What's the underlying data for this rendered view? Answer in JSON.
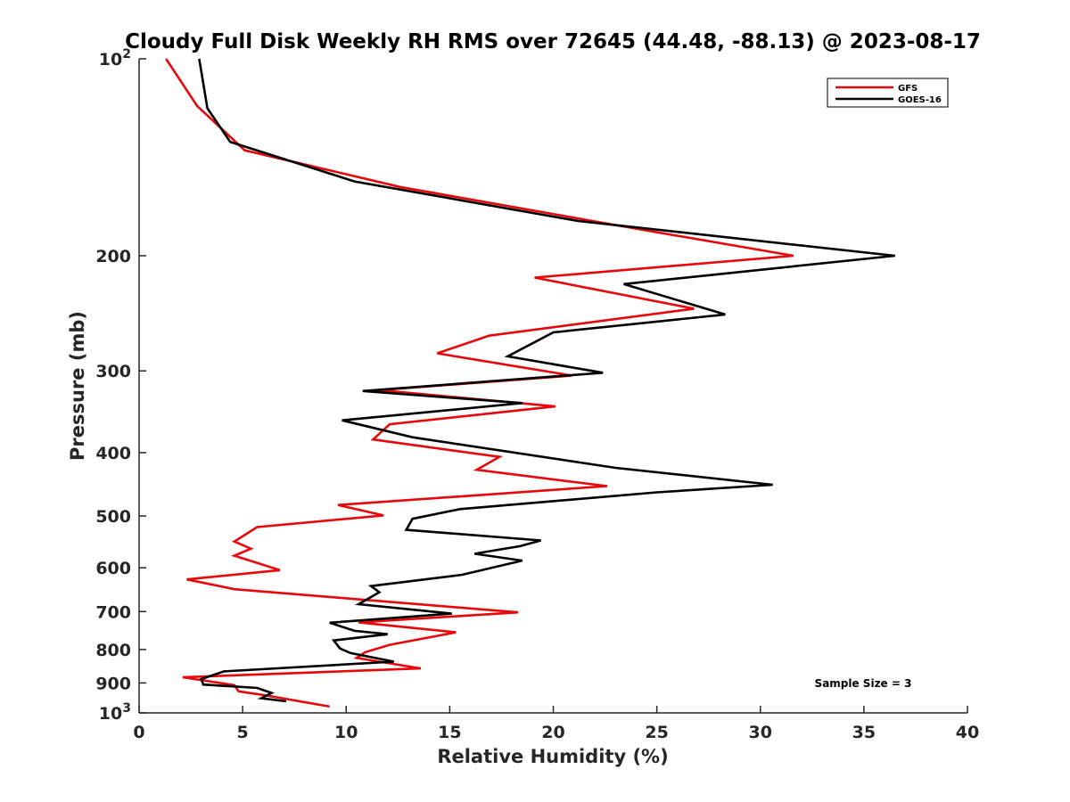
{
  "chart_data": {
    "type": "line",
    "title": "Cloudy Full Disk Weekly RH RMS over 72645 (44.48, -88.13) @ 2023-08-17",
    "xlabel": "Relative Humidity (%)",
    "ylabel": "Pressure (mb)",
    "xlim": [
      0,
      40
    ],
    "ylim": [
      100,
      1000
    ],
    "y_scale": "log",
    "y_reversed": true,
    "x_ticks": [
      0,
      5,
      10,
      15,
      20,
      25,
      30,
      35,
      40
    ],
    "x_tick_labels": [
      "0",
      "5",
      "10",
      "15",
      "20",
      "25",
      "30",
      "35",
      "40"
    ],
    "y_ticks": [
      {
        "value": 100,
        "base": "10",
        "exp": "2"
      },
      {
        "value": 200,
        "label": "200"
      },
      {
        "value": 300,
        "label": "300"
      },
      {
        "value": 400,
        "label": "400"
      },
      {
        "value": 500,
        "label": "500"
      },
      {
        "value": 600,
        "label": "600"
      },
      {
        "value": 700,
        "label": "700"
      },
      {
        "value": 800,
        "label": "800"
      },
      {
        "value": 900,
        "label": "900"
      },
      {
        "value": 1000,
        "base": "10",
        "exp": "3"
      }
    ],
    "grid": false,
    "legend_position": "top-right",
    "series": [
      {
        "name": "GFS",
        "color": "#e8070a",
        "points": [
          [
            1.3,
            100
          ],
          [
            2.8,
            118
          ],
          [
            5.1,
            138
          ],
          [
            12.6,
            157
          ],
          [
            23.2,
            180
          ],
          [
            31.6,
            200
          ],
          [
            19.1,
            216
          ],
          [
            26.8,
            241
          ],
          [
            16.9,
            265
          ],
          [
            14.4,
            282
          ],
          [
            20.9,
            305
          ],
          [
            11.6,
            321
          ],
          [
            20.1,
            340
          ],
          [
            12.1,
            362
          ],
          [
            11.3,
            382
          ],
          [
            17.4,
            406
          ],
          [
            16.3,
            425
          ],
          [
            22.6,
            450
          ],
          [
            9.6,
            481
          ],
          [
            11.8,
            499
          ],
          [
            5.7,
            520
          ],
          [
            4.6,
            547
          ],
          [
            5.4,
            561
          ],
          [
            4.6,
            575
          ],
          [
            6.8,
            605
          ],
          [
            2.3,
            625
          ],
          [
            4.6,
            647
          ],
          [
            18.3,
            702
          ],
          [
            10.6,
            727
          ],
          [
            15.3,
            753
          ],
          [
            12.1,
            787
          ],
          [
            10.9,
            808
          ],
          [
            10.5,
            824
          ],
          [
            13.6,
            855
          ],
          [
            2.1,
            882
          ],
          [
            4.6,
            907
          ],
          [
            4.8,
            927
          ],
          [
            6.1,
            940
          ],
          [
            9.2,
            978
          ]
        ]
      },
      {
        "name": "GOES-16",
        "color": "#000000",
        "points": [
          [
            2.9,
            100
          ],
          [
            3.3,
            119
          ],
          [
            4.4,
            134
          ],
          [
            10.4,
            154
          ],
          [
            21.2,
            177
          ],
          [
            36.5,
            200
          ],
          [
            23.4,
            221
          ],
          [
            28.3,
            246
          ],
          [
            20.0,
            262
          ],
          [
            17.8,
            285
          ],
          [
            22.4,
            302
          ],
          [
            10.8,
            322
          ],
          [
            18.5,
            336
          ],
          [
            9.8,
            357
          ],
          [
            13.2,
            379
          ],
          [
            23.0,
            422
          ],
          [
            30.6,
            448
          ],
          [
            25.0,
            460
          ],
          [
            15.5,
            488
          ],
          [
            13.2,
            505
          ],
          [
            12.9,
            525
          ],
          [
            19.4,
            545
          ],
          [
            18.4,
            556
          ],
          [
            16.2,
            571
          ],
          [
            18.5,
            585
          ],
          [
            15.6,
            615
          ],
          [
            11.2,
            640
          ],
          [
            11.6,
            654
          ],
          [
            10.6,
            682
          ],
          [
            15.1,
            705
          ],
          [
            9.2,
            728
          ],
          [
            10.4,
            749
          ],
          [
            12.0,
            758
          ],
          [
            9.4,
            775
          ],
          [
            9.7,
            797
          ],
          [
            10.2,
            810
          ],
          [
            12.3,
            835
          ],
          [
            4.1,
            864
          ],
          [
            3.0,
            888
          ],
          [
            3.1,
            905
          ],
          [
            5.7,
            916
          ],
          [
            6.4,
            932
          ],
          [
            5.9,
            950
          ],
          [
            7.1,
            960
          ]
        ]
      }
    ],
    "annotations": [
      {
        "text": "Sample Size = 3"
      }
    ]
  }
}
